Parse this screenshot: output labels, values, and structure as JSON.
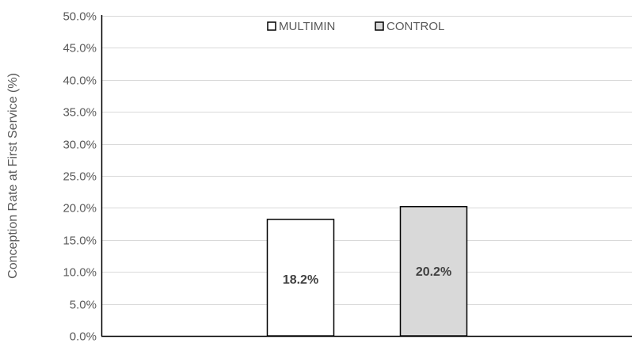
{
  "chart_data": {
    "type": "bar",
    "categories": [
      ""
    ],
    "series": [
      {
        "name": "MULTIMIN",
        "values": [
          18.2
        ],
        "data_labels": [
          "18.2%"
        ],
        "color": "#ffffff"
      },
      {
        "name": "CONTROL",
        "values": [
          20.2
        ],
        "data_labels": [
          "20.2%"
        ],
        "color": "#d9d9d9"
      }
    ],
    "title": "",
    "xlabel": "",
    "ylabel": "Conception Rate at First Service (%)",
    "ylim": [
      0,
      50
    ],
    "yticks": [
      0,
      5,
      10,
      15,
      20,
      25,
      30,
      35,
      40,
      45,
      50
    ],
    "ytick_labels": [
      "0.0%",
      "5.0%",
      "10.0%",
      "15.0%",
      "20.0%",
      "25.0%",
      "30.0%",
      "35.0%",
      "40.0%",
      "45.0%",
      "50.0%"
    ],
    "grid": true,
    "legend": {
      "position": "top-center",
      "entries": [
        "MULTIMIN",
        "CONTROL"
      ]
    },
    "colors": {
      "gridline": "#d9d9d9",
      "axis": "#000000",
      "bar_border": "#000000",
      "tick_text": "#595959",
      "label_text": "#404040"
    }
  }
}
